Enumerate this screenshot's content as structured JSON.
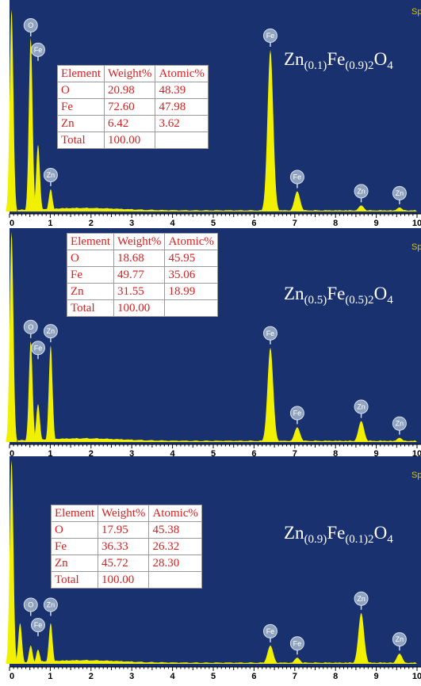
{
  "chart_data": [
    {
      "type": "line",
      "title": "",
      "spectrum_tag": "Sp",
      "xlim": [
        0,
        10
      ],
      "x_ticks": [
        "0",
        "1",
        "2",
        "3",
        "4",
        "5",
        "6",
        "7",
        "8",
        "9",
        "10"
      ],
      "series_color": "#f0f000",
      "background_color": "#1a3170",
      "formula": {
        "base1": "Zn",
        "sub1": "(0.1)",
        "base2": "Fe",
        "sub2": "(0.9)2",
        "base3": "O",
        "sub3": "4"
      },
      "peaks": [
        {
          "x": 0.05,
          "y": 1.0
        },
        {
          "x": 0.52,
          "y": 0.86
        },
        {
          "x": 0.7,
          "y": 0.33
        },
        {
          "x": 1.01,
          "y": 0.11
        },
        {
          "x": 6.4,
          "y": 0.8
        },
        {
          "x": 7.06,
          "y": 0.1
        },
        {
          "x": 8.63,
          "y": 0.03
        },
        {
          "x": 9.57,
          "y": 0.02
        }
      ],
      "peak_labels": [
        {
          "label": "O",
          "x": 0.52,
          "y": 0.86
        },
        {
          "label": "Fe",
          "x": 0.7,
          "y": 0.73
        },
        {
          "label": "Zn",
          "x": 1.01,
          "y": 0.11
        },
        {
          "label": "Fe",
          "x": 6.4,
          "y": 0.8
        },
        {
          "label": "Fe",
          "x": 7.06,
          "y": 0.1
        },
        {
          "label": "Zn",
          "x": 8.63,
          "y": 0.03
        },
        {
          "label": "Zn",
          "x": 9.57,
          "y": 0.02
        }
      ],
      "table": {
        "headers": [
          "Element",
          "Weight%",
          "Atomic%"
        ],
        "rows": [
          [
            "O",
            "20.98",
            "48.39"
          ],
          [
            "Fe",
            "72.60",
            "47.98"
          ],
          [
            "Zn",
            "6.42",
            "3.62"
          ],
          [
            "Total",
            "100.00",
            ""
          ]
        ]
      }
    },
    {
      "type": "line",
      "title": "",
      "spectrum_tag": "Sp",
      "xlim": [
        0,
        10
      ],
      "x_ticks": [
        "0",
        "1",
        "2",
        "3",
        "4",
        "5",
        "6",
        "7",
        "8",
        "9",
        "10"
      ],
      "series_color": "#f0f000",
      "background_color": "#1a3170",
      "formula": {
        "base1": "Zn",
        "sub1": "(0.5)",
        "base2": "Fe",
        "sub2": "(0.5)2",
        "base3": "O",
        "sub3": "4"
      },
      "peaks": [
        {
          "x": 0.05,
          "y": 1.0
        },
        {
          "x": 0.52,
          "y": 0.48
        },
        {
          "x": 0.7,
          "y": 0.18
        },
        {
          "x": 1.01,
          "y": 0.46
        },
        {
          "x": 6.4,
          "y": 0.45
        },
        {
          "x": 7.06,
          "y": 0.07
        },
        {
          "x": 8.63,
          "y": 0.1
        },
        {
          "x": 9.57,
          "y": 0.02
        }
      ],
      "peak_labels": [
        {
          "label": "O",
          "x": 0.52,
          "y": 0.48
        },
        {
          "label": "Fe",
          "x": 0.7,
          "y": 0.38
        },
        {
          "label": "Zn",
          "x": 1.01,
          "y": 0.46
        },
        {
          "label": "Fe",
          "x": 6.4,
          "y": 0.45
        },
        {
          "label": "Fe",
          "x": 7.06,
          "y": 0.07
        },
        {
          "label": "Zn",
          "x": 8.63,
          "y": 0.1
        },
        {
          "label": "Zn",
          "x": 9.57,
          "y": 0.02
        }
      ],
      "table": {
        "headers": [
          "Element",
          "Weight%",
          "Atomic%"
        ],
        "rows": [
          [
            "O",
            "18.68",
            "45.95"
          ],
          [
            "Fe",
            "49.77",
            "35.06"
          ],
          [
            "Zn",
            "31.55",
            "18.99"
          ],
          [
            "Total",
            "100.00",
            ""
          ]
        ]
      }
    },
    {
      "type": "line",
      "title": "",
      "spectrum_tag": "Sp",
      "xlim": [
        0,
        10
      ],
      "x_ticks": [
        "0",
        "1",
        "2",
        "3",
        "4",
        "5",
        "6",
        "7",
        "8",
        "9",
        "10"
      ],
      "series_color": "#f0f000",
      "background_color": "#1a3170",
      "formula": {
        "base1": "Zn",
        "sub1": "(0.9)",
        "base2": "Fe",
        "sub2": "(0.1)2",
        "base3": "O",
        "sub3": "4"
      },
      "peaks": [
        {
          "x": 0.05,
          "y": 1.0
        },
        {
          "x": 0.26,
          "y": 0.2
        },
        {
          "x": 0.52,
          "y": 0.09
        },
        {
          "x": 0.7,
          "y": 0.07
        },
        {
          "x": 1.01,
          "y": 0.2
        },
        {
          "x": 6.4,
          "y": 0.09
        },
        {
          "x": 7.06,
          "y": 0.03
        },
        {
          "x": 8.63,
          "y": 0.25
        },
        {
          "x": 9.57,
          "y": 0.05
        }
      ],
      "peak_labels": [
        {
          "label": "O",
          "x": 0.52,
          "y": 0.22
        },
        {
          "label": "Fe",
          "x": 0.7,
          "y": 0.12
        },
        {
          "label": "Zn",
          "x": 1.01,
          "y": 0.22
        },
        {
          "label": "Fe",
          "x": 6.4,
          "y": 0.09
        },
        {
          "label": "Fe",
          "x": 7.06,
          "y": 0.03
        },
        {
          "label": "Zn",
          "x": 8.63,
          "y": 0.25
        },
        {
          "label": "Zn",
          "x": 9.57,
          "y": 0.05
        }
      ],
      "table": {
        "headers": [
          "Element",
          "Weight%",
          "Atomic%"
        ],
        "rows": [
          [
            "O",
            "17.95",
            "45.38"
          ],
          [
            "Fe",
            "36.33",
            "26.32"
          ],
          [
            "Zn",
            "45.72",
            "28.30"
          ],
          [
            "Total",
            "100.00",
            ""
          ]
        ]
      }
    }
  ]
}
